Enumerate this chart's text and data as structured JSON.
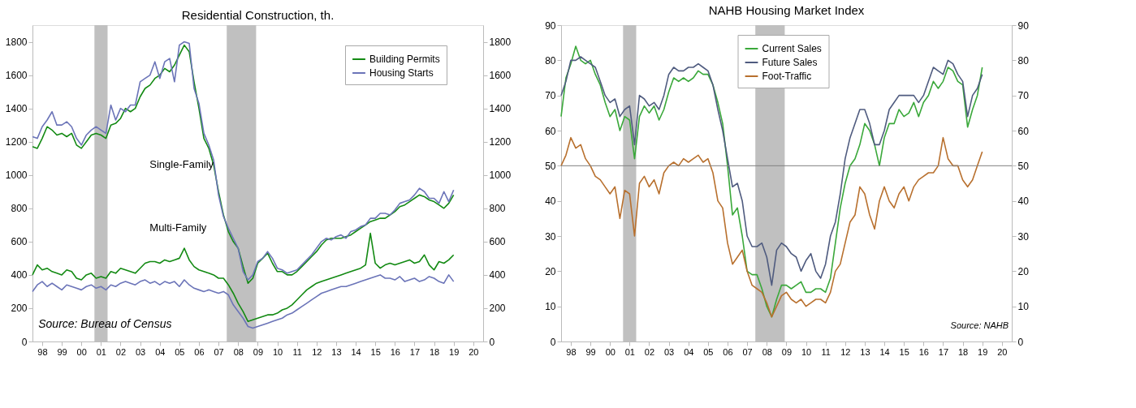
{
  "chart_data": [
    {
      "type": "line",
      "title": "Residential Construction, th.",
      "x": [
        "1998-01",
        "1998-04",
        "1998-07",
        "1998-10",
        "1999-01",
        "1999-04",
        "1999-07",
        "1999-10",
        "2000-01",
        "2000-04",
        "2000-07",
        "2000-10",
        "2001-01",
        "2001-04",
        "2001-07",
        "2001-10",
        "2002-01",
        "2002-04",
        "2002-07",
        "2002-10",
        "2003-01",
        "2003-04",
        "2003-07",
        "2003-10",
        "2004-01",
        "2004-04",
        "2004-07",
        "2004-10",
        "2005-01",
        "2005-04",
        "2005-07",
        "2005-10",
        "2006-01",
        "2006-04",
        "2006-07",
        "2006-10",
        "2007-01",
        "2007-04",
        "2007-07",
        "2007-10",
        "2008-01",
        "2008-04",
        "2008-07",
        "2008-10",
        "2009-01",
        "2009-04",
        "2009-07",
        "2009-10",
        "2010-01",
        "2010-04",
        "2010-07",
        "2010-10",
        "2011-01",
        "2011-04",
        "2011-07",
        "2011-10",
        "2012-01",
        "2012-04",
        "2012-07",
        "2012-10",
        "2013-01",
        "2013-04",
        "2013-07",
        "2013-10",
        "2014-01",
        "2014-04",
        "2014-07",
        "2014-10",
        "2015-01",
        "2015-04",
        "2015-07",
        "2015-10",
        "2016-01",
        "2016-04",
        "2016-07",
        "2016-10",
        "2017-01",
        "2017-04",
        "2017-07",
        "2017-10",
        "2018-01",
        "2018-04",
        "2018-07",
        "2018-10",
        "2019-01",
        "2019-04",
        "2019-07"
      ],
      "series": [
        {
          "name": "Building Permits",
          "color": "#138a13",
          "values": [
            1170,
            1160,
            1220,
            1290,
            1270,
            1240,
            1250,
            1230,
            1250,
            1180,
            1160,
            1200,
            1240,
            1250,
            1240,
            1220,
            1300,
            1310,
            1340,
            1400,
            1380,
            1400,
            1470,
            1520,
            1540,
            1580,
            1600,
            1640,
            1620,
            1660,
            1720,
            1780,
            1740,
            1560,
            1400,
            1220,
            1160,
            1060,
            900,
            760,
            660,
            600,
            560,
            450,
            350,
            380,
            470,
            500,
            530,
            470,
            420,
            420,
            400,
            400,
            420,
            450,
            480,
            510,
            540,
            580,
            610,
            620,
            620,
            620,
            630,
            640,
            660,
            680,
            700,
            720,
            730,
            740,
            740,
            760,
            780,
            810,
            820,
            840,
            860,
            880,
            870,
            850,
            840,
            820,
            800,
            830,
            880
          ]
        },
        {
          "name": "Housing Starts",
          "color": "#6b74b8",
          "values": [
            1230,
            1220,
            1290,
            1330,
            1380,
            1300,
            1300,
            1320,
            1290,
            1220,
            1180,
            1240,
            1270,
            1290,
            1270,
            1250,
            1420,
            1330,
            1400,
            1380,
            1420,
            1420,
            1560,
            1580,
            1600,
            1680,
            1580,
            1680,
            1700,
            1560,
            1780,
            1800,
            1790,
            1520,
            1430,
            1250,
            1180,
            1090,
            880,
            750,
            680,
            620,
            560,
            420,
            370,
            400,
            480,
            500,
            540,
            500,
            440,
            430,
            410,
            420,
            430,
            460,
            490,
            520,
            560,
            600,
            620,
            610,
            630,
            640,
            620,
            660,
            670,
            690,
            700,
            740,
            740,
            770,
            770,
            760,
            790,
            830,
            840,
            850,
            880,
            920,
            900,
            860,
            860,
            830,
            900,
            840,
            910
          ]
        },
        {
          "color": "#138a13",
          "values": [
            400,
            460,
            430,
            440,
            420,
            410,
            400,
            430,
            420,
            380,
            370,
            400,
            410,
            380,
            390,
            380,
            420,
            410,
            440,
            430,
            420,
            410,
            440,
            470,
            480,
            480,
            470,
            490,
            480,
            490,
            500,
            560,
            490,
            450,
            430,
            420,
            410,
            400,
            380,
            380,
            340,
            290,
            230,
            180,
            120,
            130,
            140,
            150,
            160,
            160,
            170,
            190,
            200,
            220,
            250,
            280,
            310,
            330,
            350,
            360,
            370,
            380,
            390,
            400,
            410,
            420,
            430,
            440,
            460,
            650,
            470,
            440,
            460,
            470,
            460,
            470,
            480,
            490,
            470,
            480,
            520,
            460,
            430,
            480,
            470,
            490,
            520
          ]
        },
        {
          "color": "#6b74b8",
          "values": [
            300,
            340,
            360,
            330,
            350,
            330,
            310,
            340,
            330,
            320,
            310,
            330,
            340,
            320,
            330,
            310,
            340,
            330,
            350,
            360,
            350,
            340,
            360,
            370,
            350,
            360,
            340,
            360,
            350,
            360,
            330,
            370,
            340,
            320,
            310,
            300,
            310,
            300,
            290,
            300,
            280,
            220,
            180,
            140,
            90,
            80,
            90,
            100,
            110,
            120,
            130,
            140,
            160,
            170,
            190,
            210,
            230,
            250,
            270,
            290,
            300,
            310,
            320,
            330,
            330,
            340,
            350,
            360,
            370,
            380,
            390,
            400,
            380,
            380,
            370,
            390,
            360,
            370,
            380,
            360,
            370,
            390,
            380,
            360,
            350,
            400,
            360
          ]
        }
      ],
      "xlim": [
        "1998-01",
        "2021-01"
      ],
      "xticks": [
        {
          "value": "1998-07",
          "label": "98"
        },
        {
          "value": "1999-07",
          "label": "99"
        },
        {
          "value": "2000-07",
          "label": "00"
        },
        {
          "value": "2001-07",
          "label": "01"
        },
        {
          "value": "2002-07",
          "label": "02"
        },
        {
          "value": "2003-07",
          "label": "03"
        },
        {
          "value": "2004-07",
          "label": "04"
        },
        {
          "value": "2005-07",
          "label": "05"
        },
        {
          "value": "2006-07",
          "label": "06"
        },
        {
          "value": "2007-07",
          "label": "07"
        },
        {
          "value": "2008-07",
          "label": "08"
        },
        {
          "value": "2009-07",
          "label": "09"
        },
        {
          "value": "2010-07",
          "label": "10"
        },
        {
          "value": "2011-07",
          "label": "11"
        },
        {
          "value": "2012-07",
          "label": "12"
        },
        {
          "value": "2013-07",
          "label": "13"
        },
        {
          "value": "2014-07",
          "label": "14"
        },
        {
          "value": "2015-07",
          "label": "15"
        },
        {
          "value": "2016-07",
          "label": "16"
        },
        {
          "value": "2017-07",
          "label": "17"
        },
        {
          "value": "2018-07",
          "label": "18"
        },
        {
          "value": "2019-07",
          "label": "19"
        },
        {
          "value": "2020-07",
          "label": "20"
        }
      ],
      "ylim": [
        0,
        1900
      ],
      "yticks": [
        0,
        200,
        400,
        600,
        800,
        1000,
        1200,
        1400,
        1600,
        1800
      ],
      "y2lim": [
        0,
        1900
      ],
      "y2ticks": [
        0,
        200,
        400,
        600,
        800,
        1000,
        1200,
        1400,
        1600,
        1800
      ],
      "bands": [
        {
          "axis": "x",
          "from": "2001-03",
          "to": "2001-11",
          "color": "#c0c0c0"
        },
        {
          "axis": "x",
          "from": "2007-12",
          "to": "2009-06",
          "color": "#c0c0c0"
        }
      ],
      "annotations": [
        "Single-Family",
        "Multi-Family",
        "Source: Bureau of Census"
      ],
      "legend": "top right",
      "grid": false
    },
    {
      "type": "line",
      "title": "NAHB Housing Market Index",
      "x": [
        "1998-01",
        "1998-04",
        "1998-07",
        "1998-10",
        "1999-01",
        "1999-04",
        "1999-07",
        "1999-10",
        "2000-01",
        "2000-04",
        "2000-07",
        "2000-10",
        "2001-01",
        "2001-04",
        "2001-07",
        "2001-10",
        "2002-01",
        "2002-04",
        "2002-07",
        "2002-10",
        "2003-01",
        "2003-04",
        "2003-07",
        "2003-10",
        "2004-01",
        "2004-04",
        "2004-07",
        "2004-10",
        "2005-01",
        "2005-04",
        "2005-07",
        "2005-10",
        "2006-01",
        "2006-04",
        "2006-07",
        "2006-10",
        "2007-01",
        "2007-04",
        "2007-07",
        "2007-10",
        "2008-01",
        "2008-04",
        "2008-07",
        "2008-10",
        "2009-01",
        "2009-04",
        "2009-07",
        "2009-10",
        "2010-01",
        "2010-04",
        "2010-07",
        "2010-10",
        "2011-01",
        "2011-04",
        "2011-07",
        "2011-10",
        "2012-01",
        "2012-04",
        "2012-07",
        "2012-10",
        "2013-01",
        "2013-04",
        "2013-07",
        "2013-10",
        "2014-01",
        "2014-04",
        "2014-07",
        "2014-10",
        "2015-01",
        "2015-04",
        "2015-07",
        "2015-10",
        "2016-01",
        "2016-04",
        "2016-07",
        "2016-10",
        "2017-01",
        "2017-04",
        "2017-07",
        "2017-10",
        "2018-01",
        "2018-04",
        "2018-07",
        "2018-10",
        "2019-01",
        "2019-04",
        "2019-07"
      ],
      "series": [
        {
          "name": "Current Sales",
          "color": "#3aa83a",
          "values": [
            64,
            75,
            79,
            84,
            80,
            79,
            80,
            76,
            73,
            68,
            64,
            66,
            60,
            64,
            63,
            52,
            64,
            67,
            65,
            67,
            63,
            66,
            71,
            75,
            74,
            75,
            74,
            75,
            77,
            76,
            76,
            73,
            68,
            62,
            50,
            36,
            38,
            30,
            20,
            19,
            19,
            15,
            10,
            7,
            12,
            16,
            16,
            15,
            16,
            17,
            14,
            14,
            15,
            15,
            14,
            18,
            28,
            38,
            45,
            50,
            52,
            56,
            62,
            60,
            56,
            50,
            58,
            62,
            62,
            66,
            64,
            65,
            68,
            64,
            68,
            70,
            74,
            72,
            74,
            78,
            77,
            74,
            73,
            61,
            66,
            70,
            78
          ]
        },
        {
          "name": "Future Sales",
          "color": "#4f5b7f",
          "values": [
            70,
            74,
            80,
            80,
            81,
            80,
            79,
            78,
            74,
            70,
            68,
            69,
            64,
            66,
            67,
            56,
            70,
            69,
            67,
            68,
            66,
            70,
            76,
            78,
            77,
            77,
            78,
            78,
            79,
            78,
            77,
            73,
            66,
            60,
            52,
            44,
            45,
            40,
            30,
            27,
            27,
            28,
            24,
            16,
            26,
            28,
            27,
            25,
            24,
            20,
            23,
            25,
            20,
            18,
            22,
            30,
            34,
            42,
            52,
            58,
            62,
            66,
            66,
            62,
            56,
            56,
            60,
            66,
            68,
            70,
            70,
            70,
            70,
            68,
            70,
            74,
            78,
            77,
            76,
            80,
            79,
            76,
            74,
            64,
            70,
            72,
            76
          ]
        },
        {
          "name": "Foot-Traffic",
          "color": "#b8702e",
          "values": [
            50,
            53,
            58,
            55,
            56,
            52,
            50,
            47,
            46,
            44,
            42,
            44,
            35,
            43,
            42,
            30,
            45,
            47,
            44,
            46,
            42,
            48,
            50,
            51,
            50,
            52,
            51,
            52,
            53,
            51,
            52,
            48,
            40,
            38,
            28,
            22,
            24,
            26,
            20,
            16,
            15,
            14,
            11,
            7,
            10,
            13,
            14,
            12,
            11,
            12,
            10,
            11,
            12,
            12,
            11,
            14,
            20,
            22,
            28,
            34,
            36,
            44,
            42,
            36,
            32,
            40,
            44,
            40,
            38,
            42,
            44,
            40,
            44,
            46,
            47,
            48,
            48,
            50,
            58,
            52,
            50,
            50,
            46,
            44,
            46,
            50,
            54
          ]
        }
      ],
      "xlim": [
        "1998-01",
        "2021-01"
      ],
      "xticks": [
        {
          "value": "1998-07",
          "label": "98"
        },
        {
          "value": "1999-07",
          "label": "99"
        },
        {
          "value": "2000-07",
          "label": "00"
        },
        {
          "value": "2001-07",
          "label": "01"
        },
        {
          "value": "2002-07",
          "label": "02"
        },
        {
          "value": "2003-07",
          "label": "03"
        },
        {
          "value": "2004-07",
          "label": "04"
        },
        {
          "value": "2005-07",
          "label": "05"
        },
        {
          "value": "2006-07",
          "label": "06"
        },
        {
          "value": "2007-07",
          "label": "07"
        },
        {
          "value": "2008-07",
          "label": "08"
        },
        {
          "value": "2009-07",
          "label": "09"
        },
        {
          "value": "2010-07",
          "label": "10"
        },
        {
          "value": "2011-07",
          "label": "11"
        },
        {
          "value": "2012-07",
          "label": "12"
        },
        {
          "value": "2013-07",
          "label": "13"
        },
        {
          "value": "2014-07",
          "label": "14"
        },
        {
          "value": "2015-07",
          "label": "15"
        },
        {
          "value": "2016-07",
          "label": "16"
        },
        {
          "value": "2017-07",
          "label": "17"
        },
        {
          "value": "2018-07",
          "label": "18"
        },
        {
          "value": "2019-07",
          "label": "19"
        },
        {
          "value": "2020-07",
          "label": "20"
        }
      ],
      "ylim": [
        0,
        90
      ],
      "yticks": [
        0,
        10,
        20,
        30,
        40,
        50,
        60,
        70,
        80,
        90
      ],
      "y2lim": [
        0,
        90
      ],
      "y2ticks": [
        0,
        10,
        20,
        30,
        40,
        50,
        60,
        70,
        80,
        90
      ],
      "bands": [
        {
          "axis": "x",
          "from": "2001-03",
          "to": "2001-11",
          "color": "#c0c0c0"
        },
        {
          "axis": "x",
          "from": "2007-12",
          "to": "2009-06",
          "color": "#c0c0c0"
        }
      ],
      "ref_lines": [
        {
          "axis": "y",
          "value": 50,
          "color": "#808080"
        }
      ],
      "annotations": [
        "Source: NAHB"
      ],
      "legend": "top",
      "grid": false
    }
  ]
}
